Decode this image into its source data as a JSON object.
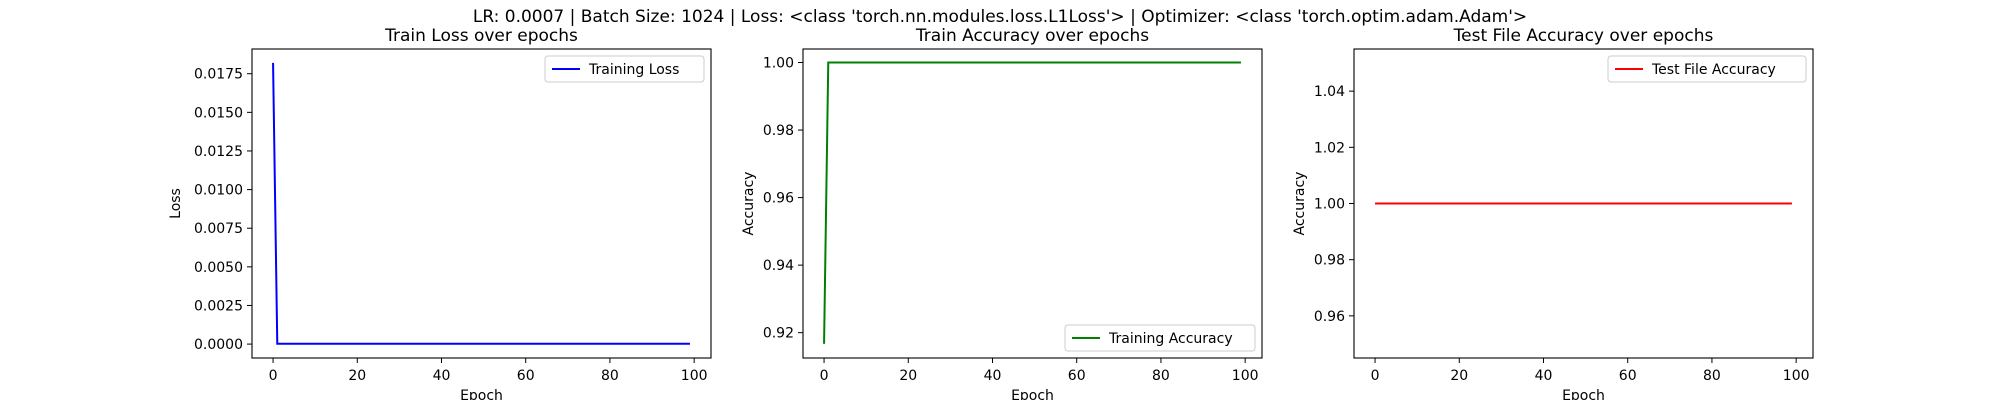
{
  "figure": {
    "suptitle": "LR: 0.0007 | Batch Size: 1024 | Loss: <class 'torch.nn.modules.loss.L1Loss'> | Optimizer: <class 'torch.optim.adam.Adam'>"
  },
  "chart_data": [
    {
      "type": "line",
      "title": "Train Loss over epochs",
      "xlabel": "Epoch",
      "ylabel": "Loss",
      "xlim": [
        -5,
        104
      ],
      "ylim": [
        -0.0009,
        0.0191
      ],
      "xticks": [
        0,
        20,
        40,
        60,
        80,
        100
      ],
      "yticks": [
        0.0,
        0.0025,
        0.005,
        0.0075,
        0.01,
        0.0125,
        0.015,
        0.0175
      ],
      "ytick_labels": [
        "0.0000",
        "0.0025",
        "0.0050",
        "0.0075",
        "0.0100",
        "0.0125",
        "0.0150",
        "0.0175"
      ],
      "grid": false,
      "legend": "top-right",
      "series": [
        {
          "name": "Training Loss",
          "color": "#0000ff",
          "x": [
            0,
            1,
            99
          ],
          "y": [
            0.0182,
            2e-05,
            2e-05
          ]
        }
      ]
    },
    {
      "type": "line",
      "title": "Train Accuracy over epochs",
      "xlabel": "Epoch",
      "ylabel": "Accuracy",
      "xlim": [
        -5,
        104
      ],
      "ylim": [
        0.9125,
        1.004
      ],
      "xticks": [
        0,
        20,
        40,
        60,
        80,
        100
      ],
      "yticks": [
        0.92,
        0.94,
        0.96,
        0.98,
        1.0
      ],
      "ytick_labels": [
        "0.92",
        "0.94",
        "0.96",
        "0.98",
        "1.00"
      ],
      "grid": false,
      "legend": "bottom-right",
      "series": [
        {
          "name": "Training Accuracy",
          "color": "#008000",
          "x": [
            0,
            1,
            99
          ],
          "y": [
            0.9167,
            1.0,
            1.0
          ]
        }
      ]
    },
    {
      "type": "line",
      "title": "Test File Accuracy over epochs",
      "xlabel": "Epoch",
      "ylabel": "Accuracy",
      "xlim": [
        -5,
        104
      ],
      "ylim": [
        0.945,
        1.055
      ],
      "xticks": [
        0,
        20,
        40,
        60,
        80,
        100
      ],
      "yticks": [
        0.96,
        0.98,
        1.0,
        1.02,
        1.04
      ],
      "ytick_labels": [
        "0.96",
        "0.98",
        "1.00",
        "1.02",
        "1.04"
      ],
      "grid": false,
      "legend": "top-right",
      "series": [
        {
          "name": "Test File Accuracy",
          "color": "#ff0000",
          "x": [
            0,
            99
          ],
          "y": [
            1.0,
            1.0
          ]
        }
      ]
    }
  ]
}
